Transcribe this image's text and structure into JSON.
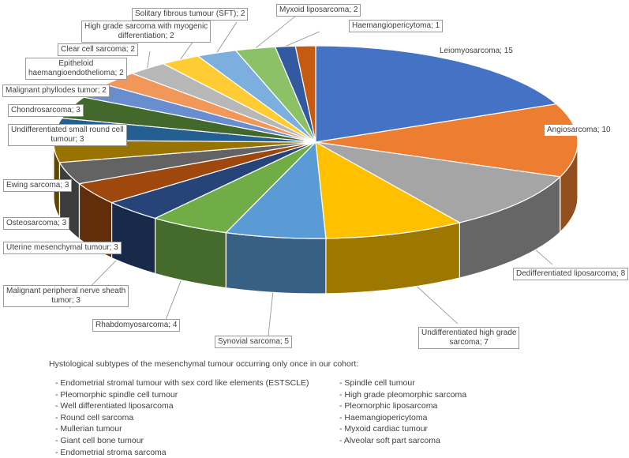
{
  "chart_data": {
    "type": "pie",
    "style": "3d-exploded",
    "slices": [
      {
        "label": "Leiomyosarcoma; 15",
        "name": "Leiomyosarcoma",
        "value": 15,
        "color": "#4472C4"
      },
      {
        "label": "Angiosarcoma; 10",
        "name": "Angiosarcoma",
        "value": 10,
        "color": "#ED7D31"
      },
      {
        "label": "Dedifferentiated liposarcoma; 8",
        "name": "Dedifferentiated liposarcoma",
        "value": 8,
        "color": "#A5A5A5"
      },
      {
        "label": "Undifferentiated high grade sarcoma; 7",
        "name": "Undifferentiated high grade sarcoma",
        "value": 7,
        "color": "#FFC000"
      },
      {
        "label": "Synovial sarcoma; 5",
        "name": "Synovial sarcoma",
        "value": 5,
        "color": "#5B9BD5"
      },
      {
        "label": "Rhabdomyosarcoma; 4",
        "name": "Rhabdomyosarcoma",
        "value": 4,
        "color": "#70AD47"
      },
      {
        "label": "Malignant peripheral nerve sheath tumor; 3",
        "name": "Malignant peripheral nerve sheath tumor",
        "value": 3,
        "color": "#264478"
      },
      {
        "label": "Uterine mesenchymal tumour; 3",
        "name": "Uterine mesenchymal tumour",
        "value": 3,
        "color": "#9E480E"
      },
      {
        "label": "Osteosarcoma; 3",
        "name": "Osteosarcoma",
        "value": 3,
        "color": "#636363"
      },
      {
        "label": "Ewing sarcoma; 3",
        "name": "Ewing sarcoma",
        "value": 3,
        "color": "#997300"
      },
      {
        "label": "Undifferentiated small round cell tumour; 3",
        "name": "Undifferentiated small round cell tumour",
        "value": 3,
        "color": "#255E91"
      },
      {
        "label": "Chondrosarcoma; 3",
        "name": "Chondrosarcoma",
        "value": 3,
        "color": "#43682B"
      },
      {
        "label": "Malignant phyllodes tumor; 2",
        "name": "Malignant phyllodes tumor",
        "value": 2,
        "color": "#698ED0"
      },
      {
        "label": "Epitheloid haemangioendothelioma; 2",
        "name": "Epitheloid haemangioendothelioma",
        "value": 2,
        "color": "#F1975A"
      },
      {
        "label": "Clear cell sarcoma; 2",
        "name": "Clear cell sarcoma",
        "value": 2,
        "color": "#B7B7B7"
      },
      {
        "label": "High grade sarcoma with myogenic differentiation; 2",
        "name": "High grade sarcoma with myogenic differentiation",
        "value": 2,
        "color": "#FFCD33"
      },
      {
        "label": "Solitary fibrous tumour (SFT); 2",
        "name": "Solitary fibrous tumour (SFT)",
        "value": 2,
        "color": "#7CAFDD"
      },
      {
        "label": "Myxoid liposarcoma; 2",
        "name": "Myxoid liposarcoma",
        "value": 2,
        "color": "#8CC168"
      },
      {
        "label": "Haemangiopericytoma; 1",
        "name": "Haemangiopericytoma",
        "value": 1,
        "color": "#335AA1"
      },
      {
        "label": "",
        "name": "",
        "value": 1,
        "color": "#C55A11"
      }
    ]
  },
  "labels": {
    "leiomyosarcoma": "Leiomyosarcoma; 15",
    "angiosarcoma": "Angiosarcoma; 10",
    "dedifferentiated": "Dedifferentiated liposarcoma; 8",
    "undiff_hg_1": "Undifferentiated high grade",
    "undiff_hg_2": "sarcoma; 7",
    "synovial": "Synovial sarcoma; 5",
    "rhabdo": "Rhabdomyosarcoma; 4",
    "mpnst_1": "Malignant peripheral nerve sheath",
    "mpnst_2": "tumor; 3",
    "uterine": "Uterine mesenchymal tumour; 3",
    "osteo": "Osteosarcoma; 3",
    "ewing": "Ewing sarcoma; 3",
    "usrct_1": "Undifferentiated small round cell",
    "usrct_2": "tumour; 3",
    "chondro": "Chondrosarcoma; 3",
    "phyllodes": "Malignant phyllodes tumor; 2",
    "epitheloid_1": "Epitheloid",
    "epitheloid_2": "haemangioendothelioma; 2",
    "clear_cell": "Clear cell sarcoma; 2",
    "hg_myo_1": "High grade sarcoma with myogenic",
    "hg_myo_2": "differentiation; 2",
    "sft": "Solitary fibrous tumour (SFT); 2",
    "myxoid": "Myxoid liposarcoma; 2",
    "haemangio": "Haemangiopericytoma; 1"
  },
  "notes": {
    "title": "Hystological subtypes of the mesenchymal tumour occurring only once in our cohort:",
    "left": [
      "- Endometrial stromal tumour with sex cord like elements (ESTSCLE)",
      "- Pleomorphic spindle cell tumour",
      "- Well differentiated liposarcoma",
      "- Round cell sarcoma",
      "- Mullerian tumour",
      "- Giant cell bone tumour",
      "- Endometrial stroma sarcoma"
    ],
    "right": [
      "- Spindle cell tumour",
      "- High grade pleomorphic sarcoma",
      "- Pleomorphic liposarcoma",
      "- Haemangiopericytoma",
      "- Myxoid cardiac tumour",
      "- Alveolar soft part sarcoma"
    ]
  }
}
